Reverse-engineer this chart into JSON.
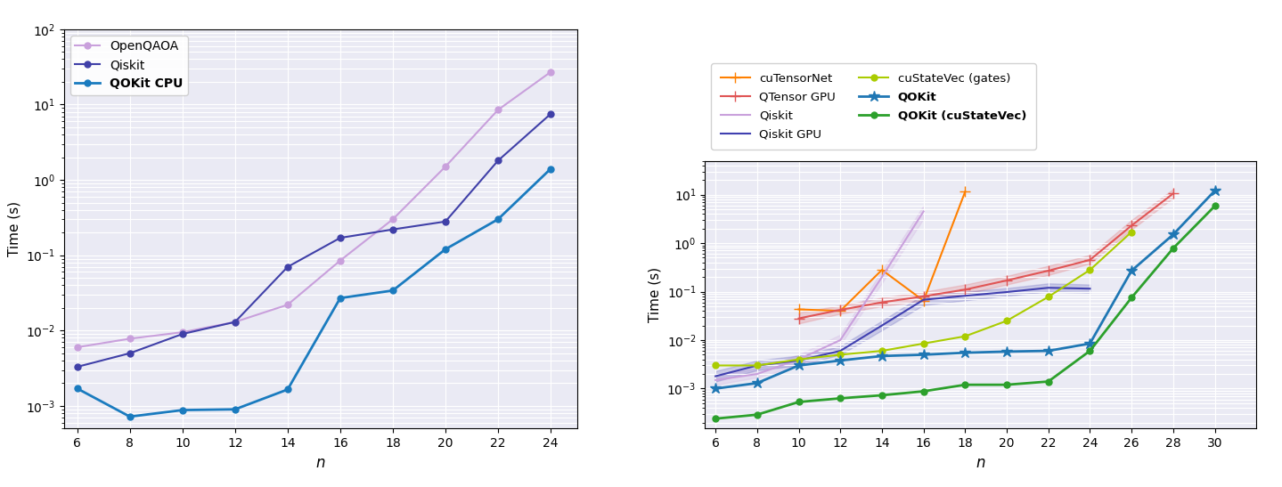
{
  "plot1": {
    "xlabel": "n",
    "ylabel": "Time (s)",
    "series": [
      {
        "label": "OpenQAOA",
        "x": [
          6,
          8,
          10,
          12,
          14,
          16,
          18,
          20,
          22,
          24
        ],
        "y": [
          0.006,
          0.0078,
          0.0095,
          0.013,
          0.022,
          0.085,
          0.3,
          1.5,
          8.5,
          27.0
        ],
        "color": "#c9a0dc",
        "marker": "o",
        "markersize": 5,
        "linewidth": 1.5,
        "bold_label": false
      },
      {
        "label": "Qiskit",
        "x": [
          6,
          8,
          10,
          12,
          14,
          16,
          18,
          20,
          22,
          24
        ],
        "y": [
          0.0033,
          0.005,
          0.009,
          0.013,
          0.07,
          0.17,
          0.22,
          0.28,
          1.8,
          7.5
        ],
        "color": "#4040a8",
        "marker": "o",
        "markersize": 5,
        "linewidth": 1.5,
        "bold_label": false
      },
      {
        "label": "QOKit CPU",
        "x": [
          6,
          8,
          10,
          12,
          14,
          16,
          18,
          20,
          22,
          24
        ],
        "y": [
          0.0017,
          0.00072,
          0.00088,
          0.0009,
          0.00165,
          0.027,
          0.034,
          0.12,
          0.3,
          1.4
        ],
        "color": "#1a7bbf",
        "marker": "o",
        "markersize": 5,
        "linewidth": 2.0,
        "bold_label": true
      }
    ],
    "xlim": [
      5.5,
      25.0
    ],
    "xticks": [
      6,
      8,
      10,
      12,
      14,
      16,
      18,
      20,
      22,
      24
    ],
    "background_color": "#eaeaf4"
  },
  "plot2": {
    "xlabel": "n",
    "ylabel": "Time (s)",
    "series": [
      {
        "label": "cuTensorNet",
        "x": [
          10,
          12,
          14,
          16,
          18,
          20
        ],
        "y": [
          0.043,
          0.04,
          0.28,
          0.065,
          11.5,
          null
        ],
        "color": "#ff8000",
        "marker": "+",
        "markersize": 8,
        "linewidth": 1.5,
        "bold_label": false,
        "has_band": false
      },
      {
        "label": "QTensor GPU",
        "x": [
          10,
          12,
          14,
          16,
          18,
          20,
          22,
          24,
          26,
          28
        ],
        "y": [
          0.028,
          0.042,
          0.06,
          0.08,
          0.11,
          0.17,
          0.27,
          0.45,
          2.3,
          10.5
        ],
        "color": "#e05555",
        "marker": "+",
        "markersize": 8,
        "linewidth": 1.5,
        "bold_label": false,
        "has_band": true,
        "y_lower": [
          0.022,
          0.035,
          0.05,
          0.065,
          0.09,
          0.14,
          0.22,
          0.38,
          1.9,
          8.5
        ],
        "y_upper": [
          0.037,
          0.052,
          0.075,
          0.099,
          0.14,
          0.21,
          0.34,
          0.57,
          3.0,
          13.0
        ]
      },
      {
        "label": "Qiskit",
        "x": [
          6,
          8,
          10,
          12,
          14,
          16
        ],
        "y": [
          0.0015,
          0.002,
          0.004,
          0.01,
          0.2,
          4.5
        ],
        "color": "#c9a0dc",
        "marker": null,
        "markersize": 5,
        "linewidth": 1.5,
        "bold_label": false,
        "has_band": true,
        "y_lower": [
          0.0012,
          0.0017,
          0.003,
          0.008,
          0.15,
          3.2
        ],
        "y_upper": [
          0.0019,
          0.0026,
          0.005,
          0.013,
          0.27,
          6.0
        ]
      },
      {
        "label": "Qiskit GPU",
        "x": [
          6,
          8,
          10,
          12,
          14,
          16,
          18,
          20,
          22,
          24
        ],
        "y": [
          0.0018,
          0.003,
          0.0038,
          0.006,
          0.02,
          0.068,
          0.082,
          0.098,
          0.12,
          0.115
        ],
        "color": "#4040b0",
        "marker": null,
        "markersize": 5,
        "linewidth": 1.5,
        "bold_label": false,
        "has_band": true,
        "y_lower": [
          0.0014,
          0.0024,
          0.003,
          0.005,
          0.016,
          0.053,
          0.066,
          0.082,
          0.1,
          0.095
        ],
        "y_upper": [
          0.0023,
          0.0038,
          0.0048,
          0.0075,
          0.025,
          0.087,
          0.1,
          0.118,
          0.148,
          0.14
        ]
      },
      {
        "label": "cuStateVec (gates)",
        "x": [
          6,
          8,
          10,
          12,
          14,
          16,
          18,
          20,
          22,
          24,
          26
        ],
        "y": [
          0.003,
          0.003,
          0.004,
          0.005,
          0.006,
          0.0085,
          0.012,
          0.025,
          0.078,
          0.28,
          1.7
        ],
        "color": "#aacc00",
        "marker": "o",
        "markersize": 5,
        "linewidth": 1.5,
        "bold_label": false,
        "has_band": false
      },
      {
        "label": "QOKit",
        "x": [
          6,
          8,
          10,
          12,
          14,
          16,
          18,
          20,
          22,
          24,
          26,
          28,
          30
        ],
        "y": [
          0.001,
          0.0013,
          0.003,
          0.0038,
          0.0047,
          0.005,
          0.0055,
          0.0058,
          0.006,
          0.0085,
          0.27,
          1.5,
          12.0
        ],
        "color": "#1f77b4",
        "marker": "*",
        "markersize": 9,
        "linewidth": 2.0,
        "bold_label": true,
        "has_band": false
      },
      {
        "label": "QOKit (cuStateVec)",
        "x": [
          6,
          8,
          10,
          12,
          14,
          16,
          18,
          20,
          22,
          24,
          26,
          28,
          30
        ],
        "y": [
          0.00024,
          0.00029,
          0.00053,
          0.00063,
          0.00073,
          0.00088,
          0.0012,
          0.0012,
          0.0014,
          0.006,
          0.075,
          0.78,
          5.8
        ],
        "color": "#2ca02c",
        "marker": "o",
        "markersize": 5,
        "linewidth": 2.0,
        "bold_label": true,
        "has_band": false
      }
    ],
    "xlim": [
      5.5,
      32.0
    ],
    "xticks": [
      6,
      8,
      10,
      12,
      14,
      16,
      18,
      20,
      22,
      24,
      26,
      28,
      30
    ],
    "background_color": "#eaeaf4"
  }
}
